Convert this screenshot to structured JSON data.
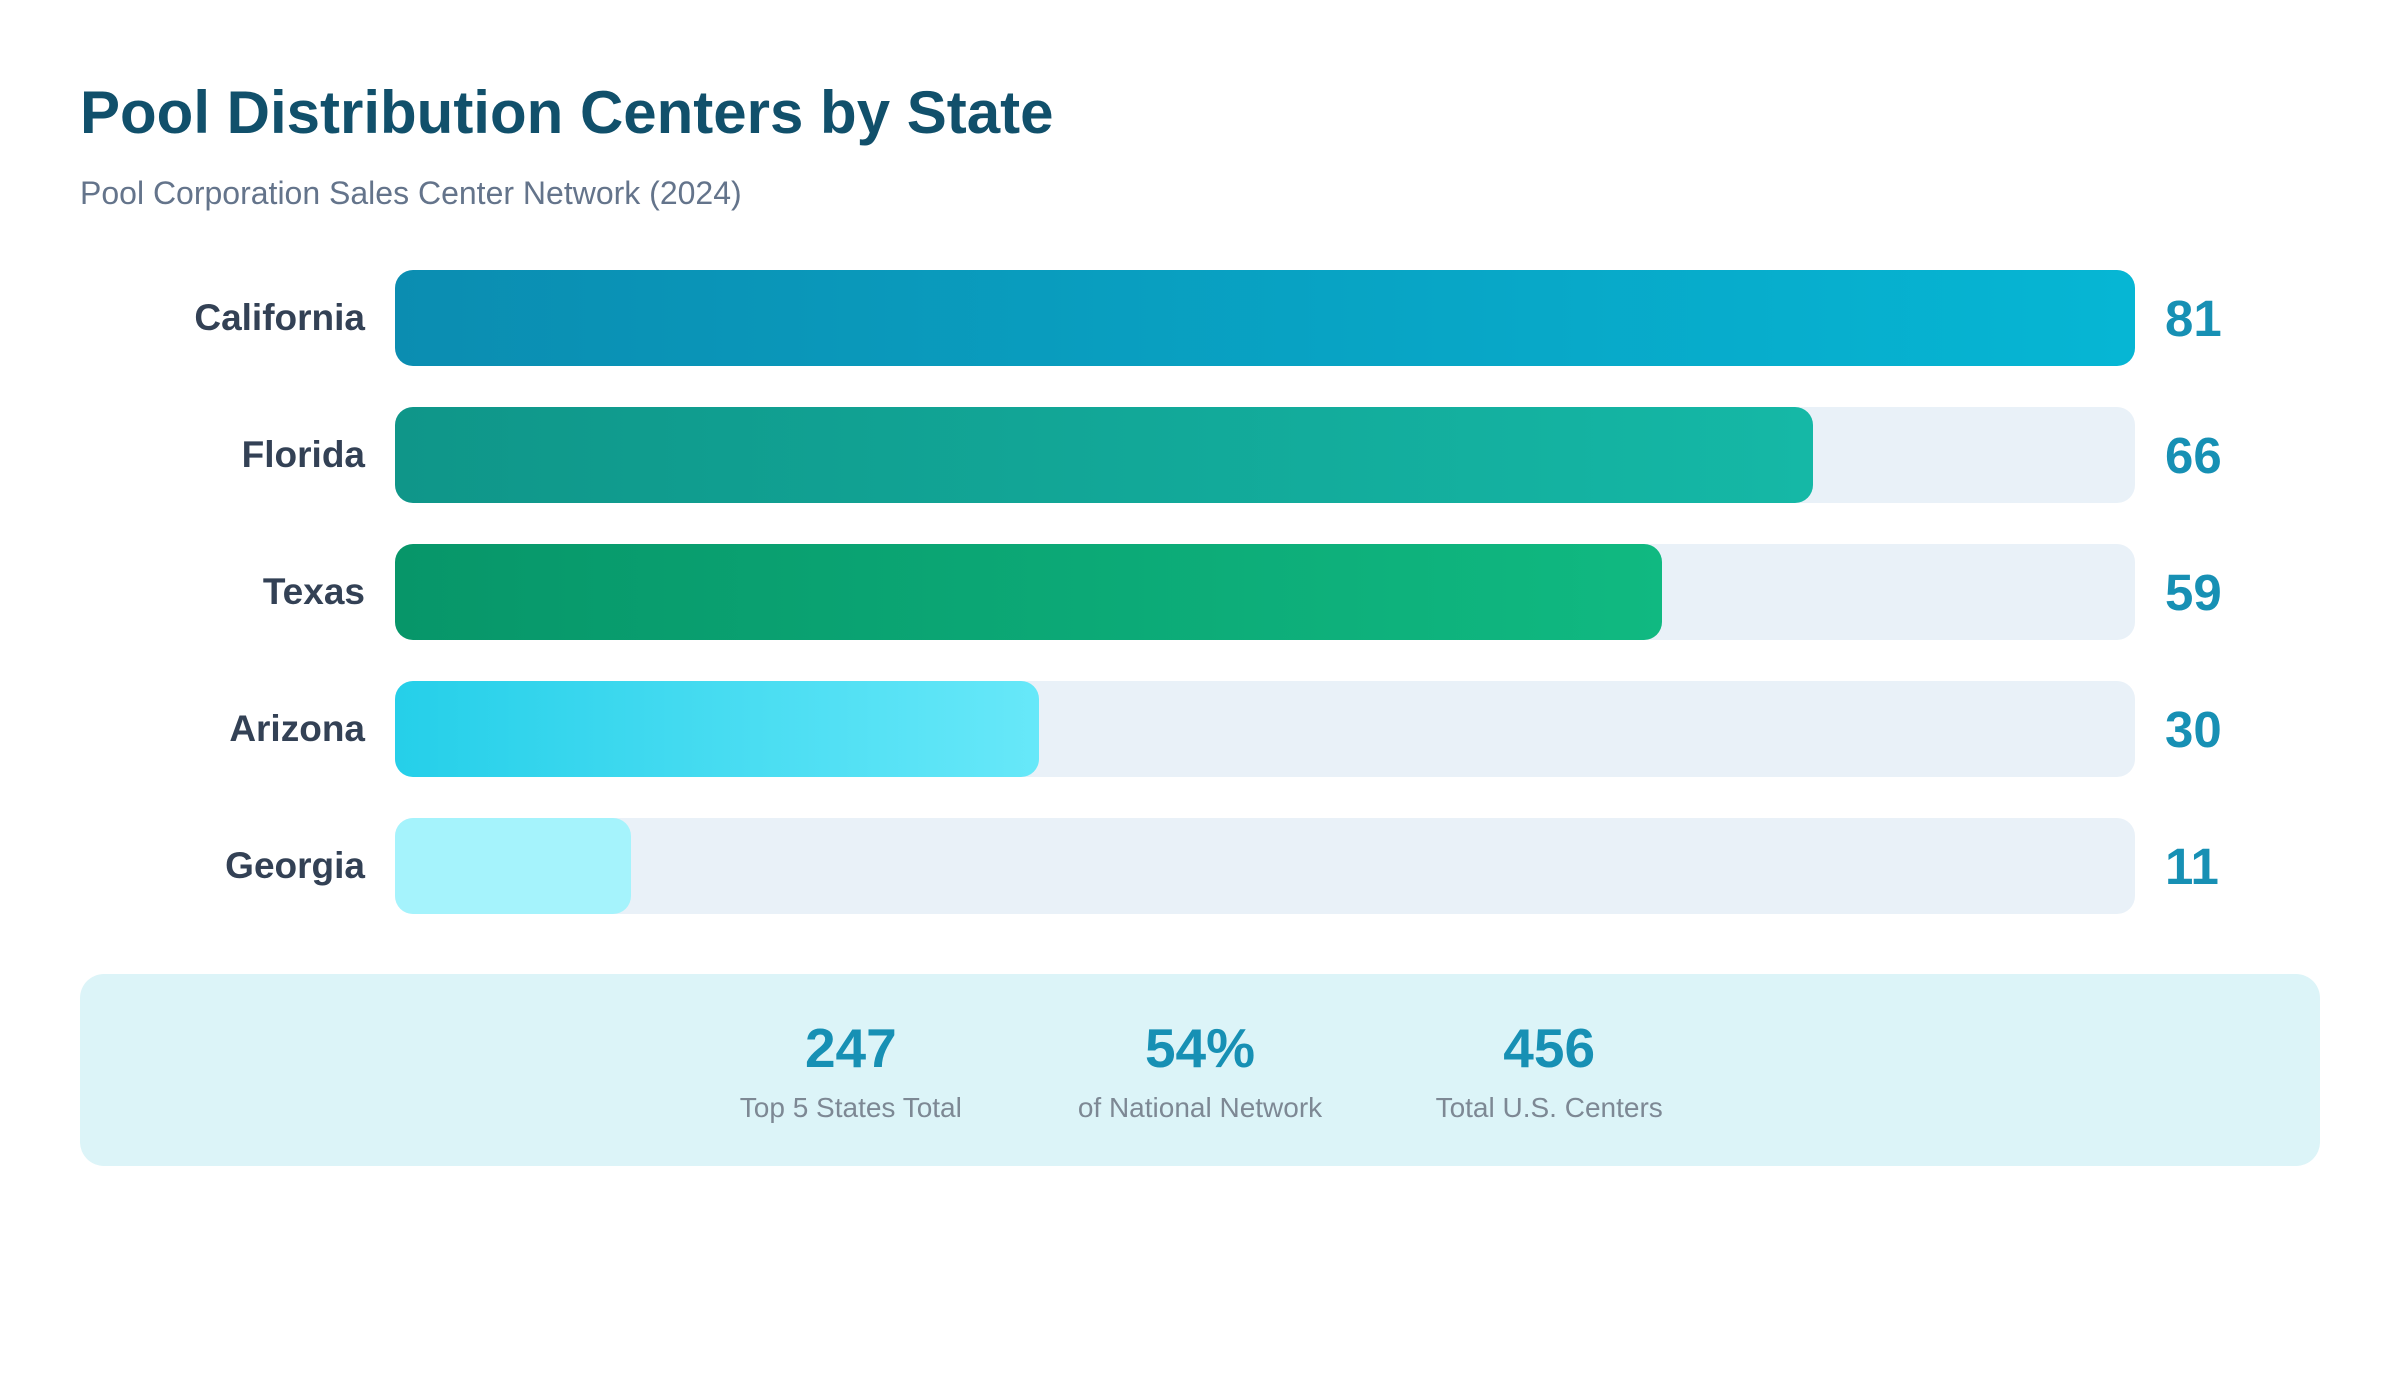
{
  "header": {
    "title": "Pool Distribution Centers by State",
    "subtitle": "Pool Corporation Sales Center Network (2024)"
  },
  "chart_data": {
    "type": "bar",
    "orientation": "horizontal",
    "title": "Pool Distribution Centers by State",
    "subtitle": "Pool Corporation Sales Center Network (2024)",
    "categories": [
      "California",
      "Florida",
      "Texas",
      "Arizona",
      "Georgia"
    ],
    "values": [
      81,
      66,
      59,
      30,
      11
    ],
    "xlim": [
      0,
      81
    ],
    "grid": false,
    "legend": false,
    "value_labels_position": "right-of-track",
    "bar_gradients": [
      {
        "from": "#0b8db1",
        "to": "#06b6d4"
      },
      {
        "from": "#0f9689",
        "to": "#15b8a6"
      },
      {
        "from": "#079669",
        "to": "#10b981"
      },
      {
        "from": "#25cfe9",
        "to": "#67e8f9"
      },
      {
        "from": "#a5f3fc",
        "to": "#a5f3fc"
      }
    ],
    "track_color": "#e9f1f8",
    "label_color": "#334155",
    "value_color": "#1790b4"
  },
  "summary": {
    "background": "#dcf4f8",
    "stats": [
      {
        "value": "247",
        "label": "Top 5 States Total"
      },
      {
        "value": "54%",
        "label": "of National Network"
      },
      {
        "value": "456",
        "label": "Total U.S. Centers"
      }
    ]
  },
  "colors": {
    "title": "#11506b",
    "subtitle": "#64748b",
    "stat_value": "#1790b4",
    "stat_label": "#7d8894",
    "page_background": "#ffffff"
  }
}
